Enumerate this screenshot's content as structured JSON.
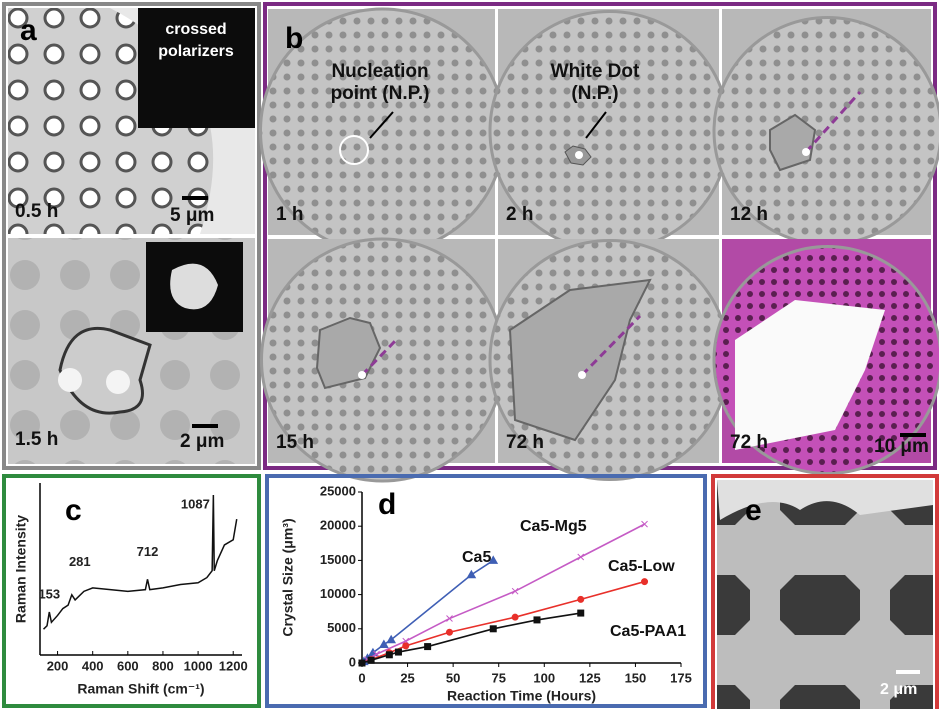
{
  "panel_a": {
    "label": "a",
    "inset_text": "crossed polarizers",
    "top_time": "0.5 h",
    "top_scale": "5 μm",
    "bottom_time": "1.5 h",
    "bottom_scale": "2 μm"
  },
  "panel_b": {
    "label": "b",
    "nucleation_text": "Nucleation point (N.P.)",
    "white_dot_text": "White Dot (N.P.)",
    "times": [
      "1 h",
      "2 h",
      "12 h",
      "15 h",
      "72 h",
      "72 h"
    ],
    "scale": "10 μm"
  },
  "chart_data": [
    {
      "type": "line",
      "panel_label": "c",
      "x_label": "Raman Shift (cm⁻¹)",
      "y_label": "Raman Intensity",
      "xlim": [
        100,
        1250
      ],
      "xticks": [
        200,
        400,
        600,
        800,
        1000,
        1200
      ],
      "ylim": [
        0,
        100
      ],
      "x": [
        120,
        140,
        153,
        165,
        200,
        230,
        260,
        281,
        300,
        350,
        400,
        500,
        600,
        700,
        712,
        725,
        800,
        900,
        1000,
        1050,
        1080,
        1087,
        1092,
        1110,
        1150,
        1200,
        1220
      ],
      "values": [
        15,
        17,
        25,
        19,
        23,
        27,
        29,
        35,
        32,
        37,
        39,
        38,
        37,
        38,
        44,
        38,
        39,
        41,
        42,
        45,
        49,
        93,
        49,
        55,
        64,
        67,
        79
      ],
      "color": "#111111",
      "peaks": [
        153,
        281,
        712,
        1087
      ]
    },
    {
      "type": "line",
      "panel_label": "d",
      "x_label": "Reaction Time (Hours)",
      "y_label": "Crystal Size (μm³)",
      "xlim": [
        0,
        175
      ],
      "xticks": [
        0,
        25,
        50,
        75,
        100,
        125,
        150,
        175
      ],
      "ylim": [
        0,
        25000
      ],
      "yticks": [
        0,
        5000,
        10000,
        15000,
        20000,
        25000
      ],
      "series": [
        {
          "name": "Ca5",
          "color": "#3f5fb5",
          "marker": "triangle",
          "x": [
            1,
            3,
            6,
            12,
            16,
            60,
            72
          ],
          "values": [
            200,
            700,
            1500,
            2700,
            3400,
            12900,
            15000
          ]
        },
        {
          "name": "Ca5-Mg5",
          "color": "#c55bc5",
          "marker": "cross",
          "x": [
            0,
            3,
            8,
            24,
            48,
            84,
            120,
            155
          ],
          "values": [
            0,
            500,
            1300,
            3200,
            6500,
            10500,
            15500,
            20300
          ]
        },
        {
          "name": "Ca5-Low",
          "color": "#e8302a",
          "marker": "circle",
          "x": [
            0,
            5,
            15,
            24,
            48,
            84,
            120,
            155
          ],
          "values": [
            0,
            500,
            1500,
            2500,
            4500,
            6700,
            9300,
            11900
          ]
        },
        {
          "name": "Ca5-PAA1",
          "color": "#111111",
          "marker": "square",
          "x": [
            0,
            5,
            15,
            20,
            36,
            72,
            96,
            120
          ],
          "values": [
            0,
            400,
            1200,
            1600,
            2400,
            5000,
            6300,
            7300
          ]
        }
      ]
    }
  ],
  "panel_e": {
    "label": "e",
    "scale": "2 μm"
  }
}
